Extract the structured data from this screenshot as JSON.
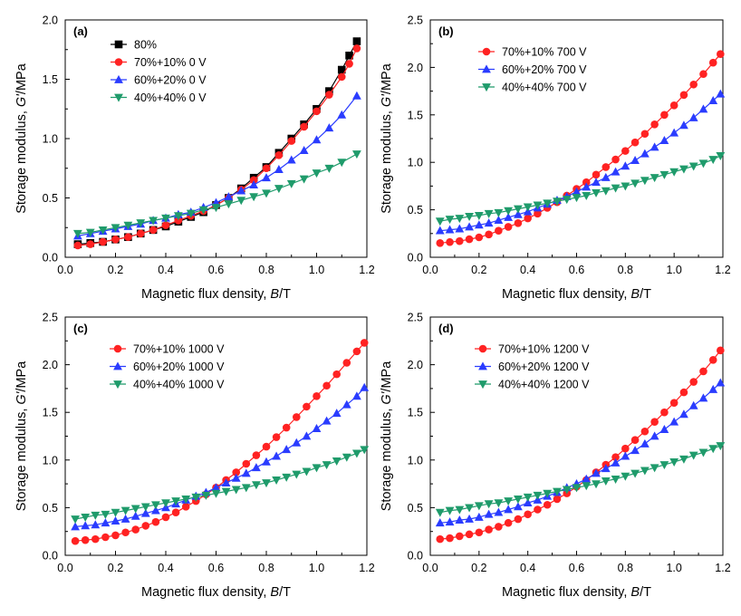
{
  "colors": {
    "80%": "#000000",
    "70%+10%": "#ff2222",
    "60%+20%": "#2a3cff",
    "40%+40%": "#1f9b6b"
  },
  "chart_data": [
    {
      "type": "line",
      "panel_label": "(a)",
      "xlabel_main": "Magnetic flux density, ",
      "xlabel_var": "B",
      "xlabel_unit": "/T",
      "ylabel_main": "Storage modulus, ",
      "ylabel_var": "G'",
      "ylabel_unit": "/MPa",
      "xlim": [
        0.0,
        1.2
      ],
      "ylim": [
        0.0,
        2.0
      ],
      "xticks": [
        "0.0",
        "0.2",
        "0.4",
        "0.6",
        "0.8",
        "1.0",
        "1.2"
      ],
      "yticks": [
        "0.0",
        "0.5",
        "1.0",
        "1.5",
        "2.0"
      ],
      "legend_position": "top-left",
      "series": [
        {
          "name": "80%",
          "marker": "square",
          "color": "#000000",
          "x": [
            0.05,
            0.1,
            0.15,
            0.2,
            0.25,
            0.3,
            0.35,
            0.4,
            0.45,
            0.5,
            0.55,
            0.6,
            0.65,
            0.7,
            0.75,
            0.8,
            0.85,
            0.9,
            0.95,
            1.0,
            1.05,
            1.1,
            1.13,
            1.16
          ],
          "y": [
            0.11,
            0.12,
            0.13,
            0.15,
            0.17,
            0.2,
            0.23,
            0.26,
            0.3,
            0.34,
            0.38,
            0.44,
            0.5,
            0.58,
            0.67,
            0.76,
            0.88,
            1.0,
            1.12,
            1.25,
            1.4,
            1.58,
            1.7,
            1.82
          ]
        },
        {
          "name": "70%+10% 0 V",
          "marker": "circle",
          "color": "#ff2222",
          "x": [
            0.05,
            0.1,
            0.15,
            0.2,
            0.25,
            0.3,
            0.35,
            0.4,
            0.45,
            0.5,
            0.55,
            0.6,
            0.65,
            0.7,
            0.75,
            0.8,
            0.85,
            0.9,
            0.95,
            1.0,
            1.05,
            1.1,
            1.13,
            1.16
          ],
          "y": [
            0.1,
            0.11,
            0.13,
            0.15,
            0.17,
            0.2,
            0.23,
            0.27,
            0.31,
            0.35,
            0.39,
            0.44,
            0.5,
            0.57,
            0.65,
            0.75,
            0.86,
            0.98,
            1.1,
            1.23,
            1.37,
            1.52,
            1.63,
            1.76
          ]
        },
        {
          "name": "60%+20% 0 V",
          "marker": "triangle-up",
          "color": "#2a3cff",
          "x": [
            0.05,
            0.1,
            0.15,
            0.2,
            0.25,
            0.3,
            0.35,
            0.4,
            0.45,
            0.5,
            0.55,
            0.6,
            0.65,
            0.7,
            0.75,
            0.8,
            0.85,
            0.9,
            0.95,
            1.0,
            1.05,
            1.1,
            1.16
          ],
          "y": [
            0.18,
            0.2,
            0.22,
            0.24,
            0.26,
            0.28,
            0.31,
            0.33,
            0.36,
            0.38,
            0.42,
            0.46,
            0.51,
            0.56,
            0.61,
            0.67,
            0.74,
            0.82,
            0.9,
            0.99,
            1.09,
            1.2,
            1.36
          ]
        },
        {
          "name": "40%+40% 0 V",
          "marker": "triangle-down",
          "color": "#1f9b6b",
          "x": [
            0.05,
            0.1,
            0.15,
            0.2,
            0.25,
            0.3,
            0.35,
            0.4,
            0.45,
            0.5,
            0.55,
            0.6,
            0.65,
            0.7,
            0.75,
            0.8,
            0.85,
            0.9,
            0.95,
            1.0,
            1.05,
            1.1,
            1.16
          ],
          "y": [
            0.2,
            0.21,
            0.23,
            0.25,
            0.27,
            0.29,
            0.31,
            0.33,
            0.35,
            0.37,
            0.4,
            0.42,
            0.45,
            0.48,
            0.51,
            0.54,
            0.58,
            0.62,
            0.66,
            0.71,
            0.75,
            0.8,
            0.87
          ]
        }
      ],
      "legend": [
        "80%",
        "70%+10% 0 V",
        "60%+20% 0 V",
        "40%+40% 0 V"
      ]
    },
    {
      "type": "line",
      "panel_label": "(b)",
      "xlabel_main": "Magnetic flux density, ",
      "xlabel_var": "B",
      "xlabel_unit": "/T",
      "ylabel_main": "Storage modulus, ",
      "ylabel_var": "G'",
      "ylabel_unit": "/MPa",
      "xlim": [
        0.0,
        1.2
      ],
      "ylim": [
        0.0,
        2.5
      ],
      "xticks": [
        "0.0",
        "0.2",
        "0.4",
        "0.6",
        "0.8",
        "1.0",
        "1.2"
      ],
      "yticks": [
        "0.0",
        "0.5",
        "1.0",
        "1.5",
        "2.0",
        "2.5"
      ],
      "legend_position": "top-left",
      "series": [
        {
          "name": "70%+10% 700 V",
          "marker": "circle",
          "color": "#ff2222",
          "x": [
            0.04,
            0.08,
            0.12,
            0.16,
            0.2,
            0.24,
            0.28,
            0.32,
            0.36,
            0.4,
            0.44,
            0.48,
            0.52,
            0.56,
            0.6,
            0.64,
            0.68,
            0.72,
            0.76,
            0.8,
            0.84,
            0.88,
            0.92,
            0.96,
            1.0,
            1.04,
            1.08,
            1.12,
            1.16,
            1.19
          ],
          "y": [
            0.15,
            0.16,
            0.17,
            0.19,
            0.21,
            0.24,
            0.28,
            0.32,
            0.36,
            0.41,
            0.46,
            0.52,
            0.58,
            0.65,
            0.72,
            0.79,
            0.87,
            0.95,
            1.03,
            1.12,
            1.21,
            1.3,
            1.4,
            1.5,
            1.6,
            1.71,
            1.82,
            1.93,
            2.05,
            2.14
          ]
        },
        {
          "name": "60%+20% 700 V",
          "marker": "triangle-up",
          "color": "#2a3cff",
          "x": [
            0.04,
            0.08,
            0.12,
            0.16,
            0.2,
            0.24,
            0.28,
            0.32,
            0.36,
            0.4,
            0.44,
            0.48,
            0.52,
            0.56,
            0.6,
            0.64,
            0.68,
            0.72,
            0.76,
            0.8,
            0.84,
            0.88,
            0.92,
            0.96,
            1.0,
            1.04,
            1.08,
            1.12,
            1.16,
            1.19
          ],
          "y": [
            0.28,
            0.29,
            0.3,
            0.32,
            0.34,
            0.36,
            0.39,
            0.42,
            0.45,
            0.48,
            0.52,
            0.56,
            0.6,
            0.64,
            0.69,
            0.74,
            0.79,
            0.84,
            0.9,
            0.96,
            1.02,
            1.09,
            1.16,
            1.23,
            1.31,
            1.39,
            1.47,
            1.56,
            1.65,
            1.72
          ]
        },
        {
          "name": "40%+40% 700 V",
          "marker": "triangle-down",
          "color": "#1f9b6b",
          "x": [
            0.04,
            0.08,
            0.12,
            0.16,
            0.2,
            0.24,
            0.28,
            0.32,
            0.36,
            0.4,
            0.44,
            0.48,
            0.52,
            0.56,
            0.6,
            0.64,
            0.68,
            0.72,
            0.76,
            0.8,
            0.84,
            0.88,
            0.92,
            0.96,
            1.0,
            1.04,
            1.08,
            1.12,
            1.16,
            1.19
          ],
          "y": [
            0.38,
            0.4,
            0.41,
            0.43,
            0.44,
            0.46,
            0.47,
            0.49,
            0.51,
            0.53,
            0.55,
            0.57,
            0.59,
            0.61,
            0.63,
            0.65,
            0.68,
            0.7,
            0.73,
            0.75,
            0.78,
            0.81,
            0.84,
            0.87,
            0.9,
            0.93,
            0.96,
            0.99,
            1.03,
            1.07
          ]
        }
      ],
      "legend": [
        "70%+10% 700 V",
        "60%+20% 700 V",
        "40%+40% 700 V"
      ]
    },
    {
      "type": "line",
      "panel_label": "(c)",
      "xlabel_main": "Magnetic flux density, ",
      "xlabel_var": "B",
      "xlabel_unit": "/T",
      "ylabel_main": "Storage modulus, ",
      "ylabel_var": "G'",
      "ylabel_unit": "/MPa",
      "xlim": [
        0.0,
        1.2
      ],
      "ylim": [
        0.0,
        2.5
      ],
      "xticks": [
        "0.0",
        "0.2",
        "0.4",
        "0.6",
        "0.8",
        "1.0",
        "1.2"
      ],
      "yticks": [
        "0.0",
        "0.5",
        "1.0",
        "1.5",
        "2.0",
        "2.5"
      ],
      "legend_position": "top-left",
      "series": [
        {
          "name": "70%+10% 1000 V",
          "marker": "circle",
          "color": "#ff2222",
          "x": [
            0.04,
            0.08,
            0.12,
            0.16,
            0.2,
            0.24,
            0.28,
            0.32,
            0.36,
            0.4,
            0.44,
            0.48,
            0.52,
            0.56,
            0.6,
            0.64,
            0.68,
            0.72,
            0.76,
            0.8,
            0.84,
            0.88,
            0.92,
            0.96,
            1.0,
            1.04,
            1.08,
            1.12,
            1.16,
            1.19
          ],
          "y": [
            0.15,
            0.16,
            0.17,
            0.19,
            0.21,
            0.24,
            0.27,
            0.31,
            0.35,
            0.4,
            0.45,
            0.51,
            0.57,
            0.64,
            0.71,
            0.79,
            0.87,
            0.96,
            1.05,
            1.14,
            1.24,
            1.34,
            1.45,
            1.56,
            1.67,
            1.78,
            1.9,
            2.02,
            2.14,
            2.23
          ]
        },
        {
          "name": "60%+20% 1000 V",
          "marker": "triangle-up",
          "color": "#2a3cff",
          "x": [
            0.04,
            0.08,
            0.12,
            0.16,
            0.2,
            0.24,
            0.28,
            0.32,
            0.36,
            0.4,
            0.44,
            0.48,
            0.52,
            0.56,
            0.6,
            0.64,
            0.68,
            0.72,
            0.76,
            0.8,
            0.84,
            0.88,
            0.92,
            0.96,
            1.0,
            1.04,
            1.08,
            1.12,
            1.16,
            1.19
          ],
          "y": [
            0.3,
            0.31,
            0.32,
            0.34,
            0.36,
            0.38,
            0.41,
            0.44,
            0.47,
            0.5,
            0.54,
            0.58,
            0.62,
            0.66,
            0.71,
            0.76,
            0.81,
            0.86,
            0.92,
            0.98,
            1.04,
            1.11,
            1.18,
            1.25,
            1.33,
            1.41,
            1.49,
            1.58,
            1.67,
            1.76
          ]
        },
        {
          "name": "40%+40% 1000 V",
          "marker": "triangle-down",
          "color": "#1f9b6b",
          "x": [
            0.04,
            0.08,
            0.12,
            0.16,
            0.2,
            0.24,
            0.28,
            0.32,
            0.36,
            0.4,
            0.44,
            0.48,
            0.52,
            0.56,
            0.6,
            0.64,
            0.68,
            0.72,
            0.76,
            0.8,
            0.84,
            0.88,
            0.92,
            0.96,
            1.0,
            1.04,
            1.08,
            1.12,
            1.16,
            1.19
          ],
          "y": [
            0.38,
            0.4,
            0.42,
            0.43,
            0.45,
            0.47,
            0.49,
            0.51,
            0.53,
            0.55,
            0.57,
            0.59,
            0.61,
            0.63,
            0.65,
            0.67,
            0.69,
            0.71,
            0.74,
            0.76,
            0.79,
            0.82,
            0.85,
            0.88,
            0.92,
            0.95,
            0.99,
            1.03,
            1.07,
            1.11
          ]
        }
      ],
      "legend": [
        "70%+10% 1000 V",
        "60%+20% 1000 V",
        "40%+40% 1000 V"
      ]
    },
    {
      "type": "line",
      "panel_label": "(d)",
      "xlabel_main": "Magnetic flux density, ",
      "xlabel_var": "B",
      "xlabel_unit": "/T",
      "ylabel_main": "Storage modulus, ",
      "ylabel_var": "G'",
      "ylabel_unit": "/MPa",
      "xlim": [
        0.0,
        1.2
      ],
      "ylim": [
        0.0,
        2.5
      ],
      "xticks": [
        "0.0",
        "0.2",
        "0.4",
        "0.6",
        "0.8",
        "1.0",
        "1.2"
      ],
      "yticks": [
        "0.0",
        "0.5",
        "1.0",
        "1.5",
        "2.0",
        "2.5"
      ],
      "legend_position": "top-left",
      "series": [
        {
          "name": "70%+10% 1200 V",
          "marker": "circle",
          "color": "#ff2222",
          "x": [
            0.04,
            0.08,
            0.12,
            0.16,
            0.2,
            0.24,
            0.28,
            0.32,
            0.36,
            0.4,
            0.44,
            0.48,
            0.52,
            0.56,
            0.6,
            0.64,
            0.68,
            0.72,
            0.76,
            0.8,
            0.84,
            0.88,
            0.92,
            0.96,
            1.0,
            1.04,
            1.08,
            1.12,
            1.16,
            1.19
          ],
          "y": [
            0.17,
            0.18,
            0.2,
            0.22,
            0.24,
            0.27,
            0.3,
            0.34,
            0.38,
            0.43,
            0.48,
            0.53,
            0.59,
            0.65,
            0.72,
            0.79,
            0.87,
            0.95,
            1.03,
            1.12,
            1.21,
            1.3,
            1.4,
            1.5,
            1.6,
            1.71,
            1.82,
            1.93,
            2.05,
            2.15
          ]
        },
        {
          "name": "60%+20% 1200 V",
          "marker": "triangle-up",
          "color": "#2a3cff",
          "x": [
            0.04,
            0.08,
            0.12,
            0.16,
            0.2,
            0.24,
            0.28,
            0.32,
            0.36,
            0.4,
            0.44,
            0.48,
            0.52,
            0.56,
            0.6,
            0.64,
            0.68,
            0.72,
            0.76,
            0.8,
            0.84,
            0.88,
            0.92,
            0.96,
            1.0,
            1.04,
            1.08,
            1.12,
            1.16,
            1.19
          ],
          "y": [
            0.34,
            0.35,
            0.37,
            0.38,
            0.4,
            0.43,
            0.45,
            0.48,
            0.51,
            0.55,
            0.58,
            0.62,
            0.66,
            0.71,
            0.75,
            0.8,
            0.86,
            0.91,
            0.97,
            1.04,
            1.1,
            1.17,
            1.25,
            1.32,
            1.4,
            1.48,
            1.57,
            1.65,
            1.74,
            1.81
          ]
        },
        {
          "name": "40%+40% 1200 V",
          "marker": "triangle-down",
          "color": "#1f9b6b",
          "x": [
            0.04,
            0.08,
            0.12,
            0.16,
            0.2,
            0.24,
            0.28,
            0.32,
            0.36,
            0.4,
            0.44,
            0.48,
            0.52,
            0.56,
            0.6,
            0.64,
            0.68,
            0.72,
            0.76,
            0.8,
            0.84,
            0.88,
            0.92,
            0.96,
            1.0,
            1.04,
            1.08,
            1.12,
            1.16,
            1.19
          ],
          "y": [
            0.45,
            0.47,
            0.48,
            0.5,
            0.52,
            0.54,
            0.55,
            0.57,
            0.59,
            0.61,
            0.63,
            0.65,
            0.67,
            0.69,
            0.71,
            0.73,
            0.75,
            0.78,
            0.8,
            0.83,
            0.86,
            0.89,
            0.92,
            0.95,
            0.98,
            1.01,
            1.05,
            1.08,
            1.12,
            1.15
          ]
        }
      ],
      "legend": [
        "70%+10% 1200 V",
        "60%+20% 1200 V",
        "40%+40% 1200 V"
      ]
    }
  ]
}
